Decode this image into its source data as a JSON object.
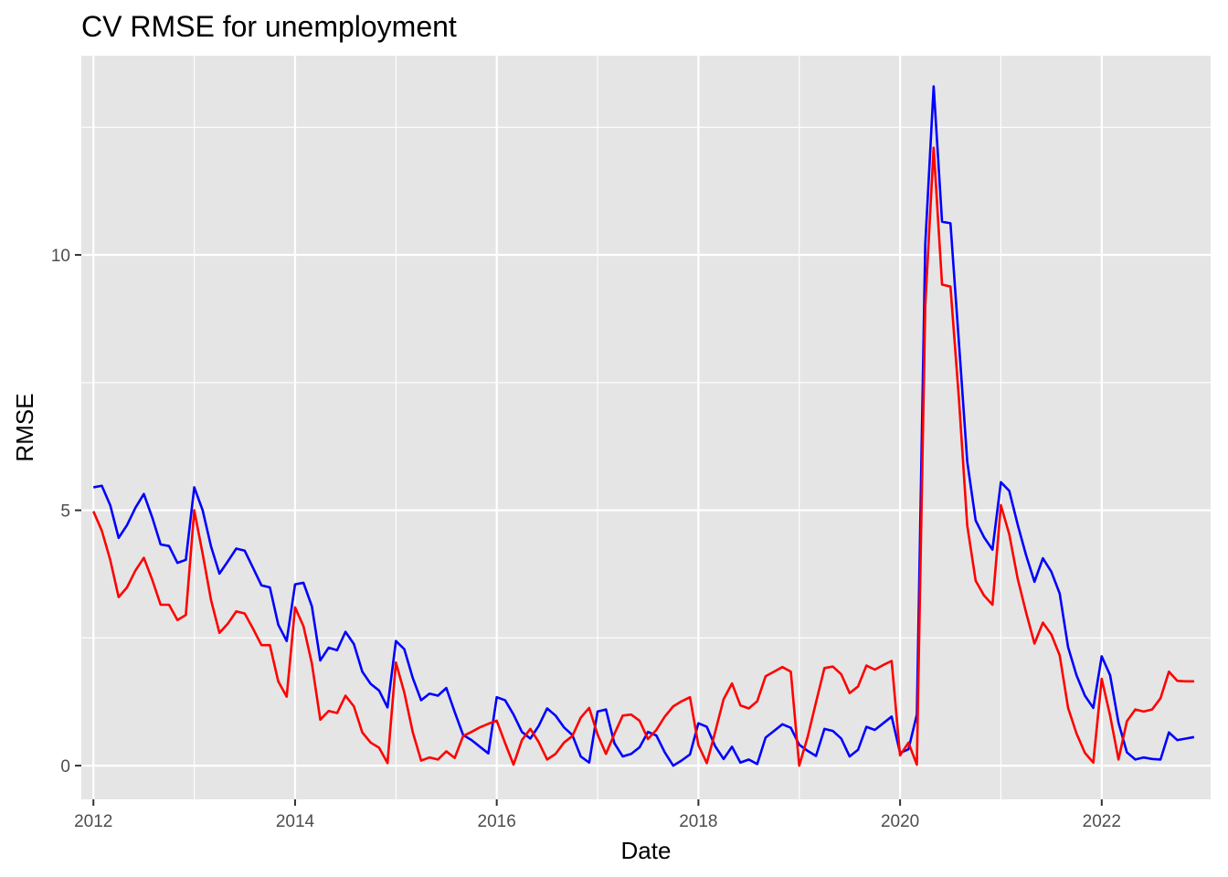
{
  "chart_data": {
    "type": "line",
    "title": "CV RMSE for unemployment",
    "xlabel": "Date",
    "ylabel": "RMSE",
    "x_ticks": [
      "2012",
      "2014",
      "2016",
      "2018",
      "2020",
      "2022"
    ],
    "x_tick_values": [
      2012,
      2014,
      2016,
      2018,
      2020,
      2022
    ],
    "y_ticks": [
      "0",
      "5",
      "10"
    ],
    "y_tick_values": [
      0,
      5,
      10
    ],
    "xlim": [
      2011.88,
      2023.08
    ],
    "ylim": [
      -0.66,
      13.9
    ],
    "grid": true,
    "legend": "none",
    "background_color": "#e5e5e5",
    "grid_color": "#ffffff",
    "x_start_year": 2012,
    "x_step": 0.08333,
    "series": [
      {
        "color": "#0000ff",
        "values": [
          5.45,
          5.48,
          5.1,
          4.46,
          4.71,
          5.05,
          5.32,
          4.86,
          4.33,
          4.3,
          3.97,
          4.03,
          5.45,
          5.0,
          4.29,
          3.76,
          4.0,
          4.25,
          4.21,
          3.87,
          3.53,
          3.49,
          2.76,
          2.44,
          3.55,
          3.58,
          3.12,
          2.06,
          2.31,
          2.26,
          2.62,
          2.38,
          1.84,
          1.6,
          1.47,
          1.14,
          2.44,
          2.28,
          1.72,
          1.28,
          1.41,
          1.37,
          1.52,
          1.05,
          0.6,
          0.5,
          0.37,
          0.24,
          1.34,
          1.28,
          1.0,
          0.66,
          0.53,
          0.78,
          1.12,
          0.98,
          0.75,
          0.6,
          0.18,
          0.06,
          1.06,
          1.1,
          0.44,
          0.18,
          0.23,
          0.36,
          0.66,
          0.59,
          0.26,
          0.0,
          0.1,
          0.22,
          0.83,
          0.76,
          0.38,
          0.13,
          0.37,
          0.06,
          0.12,
          0.03,
          0.55,
          0.68,
          0.81,
          0.74,
          0.41,
          0.29,
          0.19,
          0.72,
          0.68,
          0.53,
          0.18,
          0.31,
          0.76,
          0.7,
          0.83,
          0.96,
          0.25,
          0.32,
          1.0,
          10.2,
          13.3,
          10.65,
          10.62,
          8.3,
          5.95,
          4.8,
          4.47,
          4.23,
          5.55,
          5.38,
          4.72,
          4.12,
          3.6,
          4.06,
          3.8,
          3.37,
          2.32,
          1.77,
          1.37,
          1.13,
          2.14,
          1.77,
          0.84,
          0.26,
          0.12,
          0.16,
          0.13,
          0.12,
          0.65,
          0.5,
          0.53,
          0.56
        ]
      },
      {
        "color": "#ff0000",
        "values": [
          4.98,
          4.6,
          4.03,
          3.3,
          3.49,
          3.82,
          4.07,
          3.64,
          3.15,
          3.15,
          2.85,
          2.95,
          5.0,
          4.15,
          3.24,
          2.6,
          2.78,
          3.02,
          2.98,
          2.68,
          2.36,
          2.36,
          1.65,
          1.35,
          3.1,
          2.73,
          2.0,
          0.9,
          1.07,
          1.03,
          1.37,
          1.16,
          0.65,
          0.45,
          0.35,
          0.05,
          2.02,
          1.43,
          0.66,
          0.1,
          0.16,
          0.12,
          0.28,
          0.15,
          0.58,
          0.66,
          0.75,
          0.82,
          0.88,
          0.44,
          0.02,
          0.5,
          0.72,
          0.46,
          0.12,
          0.23,
          0.45,
          0.58,
          0.94,
          1.13,
          0.61,
          0.23,
          0.62,
          0.98,
          1.0,
          0.88,
          0.52,
          0.7,
          0.96,
          1.16,
          1.26,
          1.34,
          0.4,
          0.05,
          0.66,
          1.3,
          1.61,
          1.18,
          1.12,
          1.26,
          1.75,
          1.84,
          1.93,
          1.84,
          0.0,
          0.56,
          1.24,
          1.91,
          1.94,
          1.79,
          1.42,
          1.55,
          1.96,
          1.88,
          1.97,
          2.05,
          0.2,
          0.45,
          0.02,
          9.0,
          12.1,
          9.42,
          9.38,
          7.2,
          4.7,
          3.62,
          3.33,
          3.15,
          5.1,
          4.53,
          3.66,
          3.0,
          2.39,
          2.8,
          2.57,
          2.16,
          1.13,
          0.63,
          0.25,
          0.06,
          1.7,
          0.98,
          0.12,
          0.87,
          1.1,
          1.06,
          1.1,
          1.32,
          1.84,
          1.66,
          1.65,
          1.65
        ]
      }
    ]
  }
}
